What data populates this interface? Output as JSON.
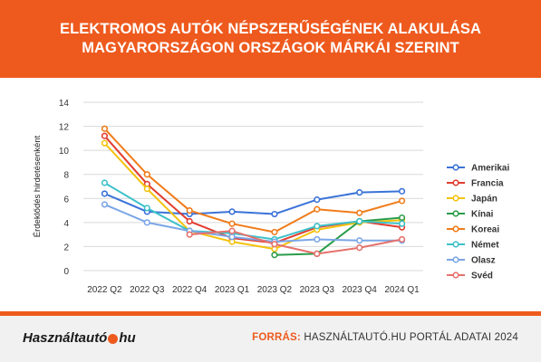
{
  "header": {
    "title_line1": "ELEKTROMOS AUTÓK NÉPSZERŰSÉGÉNEK ALAKULÁSA",
    "title_line2": "MAGYARORSZÁGON ORSZÁGOK MÁRKÁI SZERINT"
  },
  "footer": {
    "logo_text": "Használtautó",
    "logo_suffix": "hu",
    "source_label": "FORRÁS:",
    "source_text": "HASZNÁLTAUTÓ.HU PORTÁL ADATAI 2024"
  },
  "colors": {
    "accent": "#ee5a1e",
    "footer_bg": "#f1f1f1"
  },
  "chart_data": {
    "type": "line",
    "ylabel": "Érdeklődés hirdetésenként",
    "xlabel": "",
    "ylim": [
      0,
      14
    ],
    "yticks": [
      0,
      2,
      4,
      6,
      8,
      10,
      12,
      14
    ],
    "grid": true,
    "legend_position": "right",
    "categories": [
      "2022 Q2",
      "2022 Q3",
      "2022 Q4",
      "2023 Q1",
      "2023 Q2",
      "2023 Q3",
      "2023 Q4",
      "2024 Q1"
    ],
    "series": [
      {
        "name": "Amerikai",
        "color": "#3b73d8",
        "values": [
          6.4,
          4.9,
          4.7,
          4.9,
          4.7,
          5.9,
          6.5,
          6.6
        ]
      },
      {
        "name": "Francia",
        "color": "#e23d30",
        "values": [
          11.2,
          7.2,
          4.1,
          2.7,
          2.3,
          3.6,
          4.1,
          3.6
        ]
      },
      {
        "name": "Japán",
        "color": "#f4c20d",
        "values": [
          10.6,
          6.8,
          3.3,
          2.4,
          1.8,
          3.4,
          4.0,
          4.2
        ]
      },
      {
        "name": "Kínai",
        "color": "#2a9d4a",
        "values": [
          null,
          null,
          null,
          null,
          1.3,
          1.4,
          4.1,
          4.4
        ]
      },
      {
        "name": "Koreai",
        "color": "#f07c1a",
        "values": [
          11.8,
          8.0,
          5.0,
          3.9,
          3.2,
          5.1,
          4.8,
          5.8
        ]
      },
      {
        "name": "Német",
        "color": "#3cc1c9",
        "values": [
          7.3,
          5.2,
          3.3,
          3.1,
          2.6,
          3.7,
          4.1,
          3.9
        ]
      },
      {
        "name": "Olasz",
        "color": "#7ba6e6",
        "values": [
          5.5,
          4.0,
          3.3,
          2.8,
          2.4,
          2.6,
          2.5,
          2.5
        ]
      },
      {
        "name": "Svéd",
        "color": "#e6716d",
        "values": [
          null,
          null,
          3.0,
          3.3,
          2.2,
          1.4,
          1.9,
          2.6
        ]
      }
    ]
  }
}
